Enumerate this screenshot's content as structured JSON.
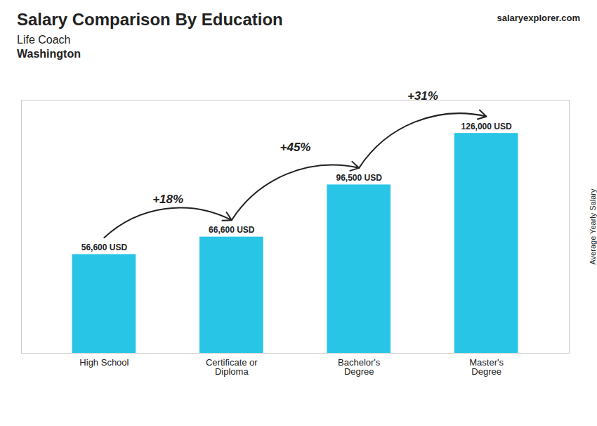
{
  "chart_data": {
    "type": "bar",
    "title": "Salary Comparison By Education",
    "subtitle": [
      "Life Coach",
      "Washington"
    ],
    "ylabel": "Average Yearly Salary",
    "categories": [
      "High School",
      "Certificate or\nDiploma",
      "Bachelor's\nDegree",
      "Master's\nDegree"
    ],
    "values": [
      56600,
      66600,
      96500,
      126000
    ],
    "value_labels": [
      "56,600 USD",
      "66,600 USD",
      "96,500 USD",
      "126,000 USD"
    ],
    "data_labels": true,
    "color": "#29c5e6",
    "ylim": [
      0,
      145000
    ],
    "tick_labels": "x",
    "grid": false,
    "annotations": [
      {
        "text": "+18%",
        "from": "High School",
        "to": "Certificate or\nDiploma"
      },
      {
        "text": "+45%",
        "from": "Certificate or\nDiploma",
        "to": "Bachelor's\nDegree"
      },
      {
        "text": "+31%",
        "from": "Bachelor's\nDegree",
        "to": "Master's\nDegree"
      },
      {
        "text": "salaryexplorer.com"
      }
    ]
  }
}
